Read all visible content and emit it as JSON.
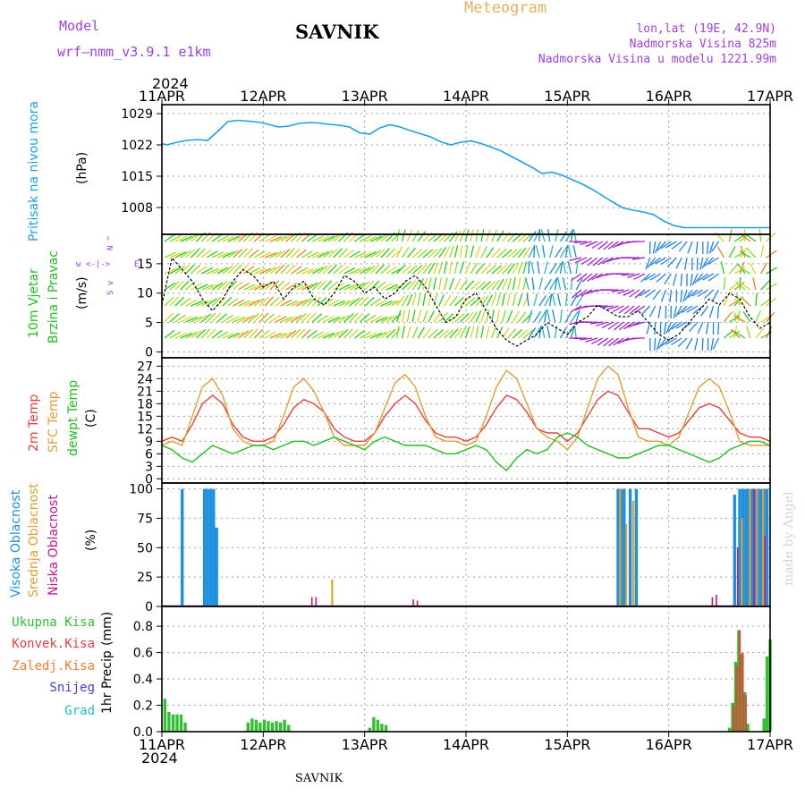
{
  "header": {
    "model_label": "Model",
    "model_name": "wrf—nmm_v3.9.1  e1km",
    "station": "SAVNIK",
    "title": "Meteogram",
    "lonlat": "lon,lat (19E, 42.9N)",
    "elev": "Nadmorska Visina 825m",
    "elev_model": "Nadmorska Visina u modelu 1221.99m",
    "year_top": "2024",
    "year_bottom": "2024",
    "footer_station": "SAVNIK",
    "credit": "made by Angel"
  },
  "colors": {
    "pressure": "#1ea0e6",
    "wind_speed_label": "#20c020",
    "t2m": "#e84040",
    "tsfc": "#e0a030",
    "dewpt": "#20c020",
    "cloud_high": "#1e90e0",
    "cloud_mid": "#e0a030",
    "cloud_low": "#c01890",
    "rain_total": "#30c030",
    "rain_conv": "#e84040",
    "rain_frozen": "#f08030",
    "snow": "#4040e0",
    "hail": "#20c0c0",
    "wind_dir_label": "#a040e0"
  },
  "chart_data": [
    {
      "type": "line",
      "panel": "pressure",
      "ylabel": "Pritisak na nivou mora",
      "unit": "(hPa)",
      "x_labels": [
        "11APR",
        "12APR",
        "13APR",
        "14APR",
        "15APR",
        "16APR",
        "17APR"
      ],
      "y_ticks": [
        1008,
        1015,
        1022,
        1029
      ],
      "ylim": [
        1002,
        1031
      ],
      "series": [
        {
          "x": [
            0,
            0.05,
            0.15,
            0.25,
            0.35,
            0.45,
            0.55,
            0.65,
            0.75,
            0.85,
            0.95,
            1.05,
            1.15,
            1.25,
            1.35,
            1.45,
            1.55,
            1.65,
            1.75,
            1.85,
            1.95,
            2.05,
            2.15,
            2.25,
            2.35,
            2.45,
            2.55,
            2.65,
            2.75,
            2.85,
            2.95,
            3.05,
            3.15,
            3.25,
            3.35,
            3.45,
            3.55,
            3.65,
            3.75,
            3.85,
            3.95,
            4.05,
            4.15,
            4.25,
            4.35,
            4.45,
            4.55,
            4.65,
            4.75,
            4.85,
            4.95,
            5.05,
            5.15,
            5.25,
            5.35,
            5.45,
            5.55,
            5.65,
            5.75,
            5.85,
            5.95,
            6.0
          ],
          "values": [
            1022.3,
            1022.0,
            1022.6,
            1023.0,
            1023.2,
            1023.0,
            1025.0,
            1027.2,
            1027.5,
            1027.3,
            1027.1,
            1026.6,
            1026.0,
            1026.2,
            1026.8,
            1027.0,
            1026.9,
            1026.6,
            1026.4,
            1026.0,
            1024.7,
            1024.4,
            1025.8,
            1026.5,
            1026.0,
            1025.2,
            1024.5,
            1023.8,
            1022.7,
            1022.0,
            1022.6,
            1022.9,
            1022.3,
            1021.5,
            1020.6,
            1019.4,
            1018.2,
            1017.0,
            1015.6,
            1015.9,
            1015.2,
            1014.2,
            1013.2,
            1012.0,
            1010.6,
            1009.2,
            1007.9,
            1007.4,
            1007.0,
            1006.4,
            1005.0,
            1004.0,
            1003.5,
            1003.5,
            1003.5,
            1003.5,
            1003.5,
            1003.5,
            1003.5,
            1003.5,
            1003.5,
            1003.5
          ]
        }
      ]
    },
    {
      "type": "line",
      "panel": "wind",
      "ylabel": "10m Vjetar Brzina i Pravac",
      "unit": "(m/s)",
      "compass": "N ^ W <-|-> E v S",
      "y_ticks": [
        0,
        5,
        10,
        15
      ],
      "ylim": [
        -1,
        20
      ],
      "series": [
        {
          "name": "speed",
          "x": [
            0,
            0.1,
            0.2,
            0.3,
            0.4,
            0.5,
            0.6,
            0.7,
            0.8,
            0.9,
            1.0,
            1.1,
            1.2,
            1.3,
            1.4,
            1.5,
            1.6,
            1.7,
            1.8,
            1.9,
            2.0,
            2.1,
            2.2,
            2.3,
            2.4,
            2.5,
            2.6,
            2.7,
            2.8,
            2.9,
            3.0,
            3.1,
            3.2,
            3.3,
            3.4,
            3.5,
            3.6,
            3.7,
            3.8,
            3.9,
            4.0,
            4.1,
            4.2,
            4.3,
            4.4,
            4.5,
            4.6,
            4.7,
            4.8,
            4.9,
            5.0,
            5.1,
            5.2,
            5.3,
            5.4,
            5.5,
            5.6,
            5.7,
            5.8,
            5.9,
            6.0
          ],
          "values": [
            8,
            16,
            14,
            12,
            9,
            7,
            9,
            12,
            14,
            13,
            11,
            12,
            9,
            11,
            12,
            9,
            8,
            10,
            13,
            12,
            10,
            11,
            9,
            10,
            12,
            13,
            11,
            8,
            5,
            6,
            9,
            10,
            7,
            4,
            2,
            1,
            2,
            3,
            5,
            4,
            3,
            5,
            6,
            8,
            7,
            6,
            6,
            7,
            5,
            3,
            2,
            3,
            5,
            7,
            9,
            8,
            10,
            9,
            6,
            4,
            5
          ]
        }
      ]
    },
    {
      "type": "line",
      "panel": "temperature",
      "ylabel_t2m": "2m Temp",
      "ylabel_sfc": "SFC Temp",
      "ylabel_dew": "dewpt Temp",
      "unit": "(C)",
      "y_ticks": [
        0,
        3,
        6,
        9,
        12,
        15,
        18,
        21,
        24,
        27
      ],
      "ylim": [
        -1,
        29
      ],
      "series": [
        {
          "name": "t2m",
          "x": [
            0,
            0.1,
            0.2,
            0.3,
            0.4,
            0.5,
            0.6,
            0.7,
            0.8,
            0.9,
            1.0,
            1.1,
            1.2,
            1.3,
            1.4,
            1.5,
            1.6,
            1.7,
            1.8,
            1.9,
            2.0,
            2.1,
            2.2,
            2.3,
            2.4,
            2.5,
            2.6,
            2.7,
            2.8,
            2.9,
            3.0,
            3.1,
            3.2,
            3.3,
            3.4,
            3.5,
            3.6,
            3.7,
            3.8,
            3.9,
            4.0,
            4.1,
            4.2,
            4.3,
            4.4,
            4.5,
            4.6,
            4.7,
            4.8,
            4.9,
            5.0,
            5.1,
            5.2,
            5.3,
            5.4,
            5.5,
            5.6,
            5.7,
            5.8,
            5.9,
            6.0
          ],
          "values": [
            9,
            10,
            9,
            13,
            18,
            20,
            18,
            13,
            10,
            9,
            9,
            10,
            13,
            17,
            19,
            18,
            16,
            12,
            10,
            9,
            9,
            11,
            15,
            18,
            20,
            18,
            14,
            11,
            10,
            10,
            9,
            10,
            13,
            17,
            20,
            19,
            16,
            12,
            11,
            11,
            9,
            11,
            15,
            19,
            21,
            20,
            16,
            12,
            12,
            11,
            10,
            11,
            14,
            17,
            18,
            17,
            14,
            11,
            10,
            10,
            9
          ]
        },
        {
          "name": "tsfc",
          "x": [
            0,
            0.1,
            0.2,
            0.3,
            0.4,
            0.5,
            0.6,
            0.7,
            0.8,
            0.9,
            1.0,
            1.1,
            1.2,
            1.3,
            1.4,
            1.5,
            1.6,
            1.7,
            1.8,
            1.9,
            2.0,
            2.1,
            2.2,
            2.3,
            2.4,
            2.5,
            2.6,
            2.7,
            2.8,
            2.9,
            3.0,
            3.1,
            3.2,
            3.3,
            3.4,
            3.5,
            3.6,
            3.7,
            3.8,
            3.9,
            4.0,
            4.1,
            4.2,
            4.3,
            4.4,
            4.5,
            4.6,
            4.7,
            4.8,
            4.9,
            5.0,
            5.1,
            5.2,
            5.3,
            5.4,
            5.5,
            5.6,
            5.7,
            5.8,
            5.9,
            6.0
          ],
          "values": [
            8,
            9,
            8,
            15,
            22,
            24,
            20,
            12,
            9,
            8,
            8,
            9,
            15,
            22,
            24,
            21,
            16,
            10,
            8,
            8,
            8,
            11,
            17,
            23,
            25,
            22,
            15,
            10,
            9,
            9,
            8,
            9,
            15,
            22,
            26,
            24,
            18,
            12,
            10,
            9,
            7,
            10,
            17,
            24,
            27,
            25,
            17,
            10,
            9,
            9,
            8,
            10,
            16,
            22,
            24,
            22,
            16,
            9,
            8,
            8,
            8
          ]
        },
        {
          "name": "dewpt",
          "x": [
            0,
            0.1,
            0.2,
            0.3,
            0.4,
            0.5,
            0.6,
            0.7,
            0.8,
            0.9,
            1.0,
            1.1,
            1.2,
            1.3,
            1.4,
            1.5,
            1.6,
            1.7,
            1.8,
            1.9,
            2.0,
            2.1,
            2.2,
            2.3,
            2.4,
            2.5,
            2.6,
            2.7,
            2.8,
            2.9,
            3.0,
            3.1,
            3.2,
            3.3,
            3.4,
            3.5,
            3.6,
            3.7,
            3.8,
            3.9,
            4.0,
            4.1,
            4.2,
            4.3,
            4.4,
            4.5,
            4.6,
            4.7,
            4.8,
            4.9,
            5.0,
            5.1,
            5.2,
            5.3,
            5.4,
            5.5,
            5.6,
            5.7,
            5.8,
            5.9,
            6.0
          ],
          "values": [
            8,
            7,
            5,
            4,
            6,
            8,
            7,
            6,
            7,
            8,
            8,
            7,
            8,
            9,
            9,
            8,
            9,
            10,
            9,
            8,
            7,
            9,
            10,
            9,
            8,
            8,
            8,
            7,
            6,
            6,
            7,
            8,
            7,
            4,
            2,
            5,
            7,
            6,
            7,
            10,
            11,
            10,
            8,
            7,
            6,
            5,
            5,
            6,
            7,
            8,
            8,
            7,
            6,
            5,
            4,
            5,
            7,
            8,
            9,
            9,
            8
          ]
        }
      ]
    },
    {
      "type": "bar",
      "panel": "clouds",
      "ylabel_high": "Visoka Oblacnost",
      "ylabel_mid": "Srednja Oblacnost",
      "ylabel_low": "Niska Oblacnost",
      "unit": "(%)",
      "y_ticks": [
        0,
        25,
        50,
        75,
        100
      ],
      "ylim": [
        0,
        105
      ],
      "series": [
        {
          "name": "high",
          "x": [
            0.2,
            0.42,
            0.45,
            0.48,
            0.51,
            0.54,
            4.5,
            4.53,
            4.56,
            4.62,
            4.68,
            5.65,
            5.7,
            5.73,
            5.76,
            5.79,
            5.82,
            5.85,
            5.88,
            5.91,
            5.94,
            5.97
          ],
          "values": [
            100,
            100,
            100,
            100,
            100,
            67,
            100,
            100,
            100,
            100,
            100,
            95,
            100,
            100,
            100,
            100,
            100,
            100,
            100,
            100,
            100,
            100
          ]
        },
        {
          "name": "mid",
          "x": [
            1.68,
            4.52,
            4.58,
            4.65,
            5.72,
            5.8,
            5.87,
            5.93
          ],
          "values": [
            23,
            100,
            70,
            90,
            75,
            100,
            100,
            100
          ]
        },
        {
          "name": "low",
          "x": [
            1.48,
            1.52,
            2.48,
            2.52,
            5.43,
            5.47,
            5.68,
            5.84,
            5.95
          ],
          "values": [
            8,
            8,
            6,
            5,
            8,
            10,
            50,
            100,
            60
          ]
        }
      ]
    },
    {
      "type": "bar",
      "panel": "precip",
      "ylabel": "1hr Precip",
      "unit": "(mm)",
      "legend": [
        "Ukupna Kisa",
        "Konvek.Kisa",
        "Zaledj.Kisa",
        "Snijeg",
        "Grad"
      ],
      "y_ticks": [
        0,
        0.2,
        0.4,
        0.6,
        0.8
      ],
      "ylim": [
        0,
        0.95
      ],
      "series": [
        {
          "name": "total",
          "x": [
            0.03,
            0.07,
            0.11,
            0.15,
            0.19,
            0.23,
            0.85,
            0.89,
            0.93,
            0.97,
            1.01,
            1.05,
            1.09,
            1.13,
            1.17,
            1.21,
            1.25,
            2.05,
            2.09,
            2.13,
            2.17,
            2.21,
            5.6,
            5.63,
            5.66,
            5.69,
            5.72,
            5.75,
            5.78,
            5.94,
            5.97,
            6.0
          ],
          "values": [
            0.25,
            0.15,
            0.13,
            0.13,
            0.13,
            0.07,
            0.07,
            0.1,
            0.09,
            0.07,
            0.09,
            0.08,
            0.07,
            0.08,
            0.07,
            0.09,
            0.05,
            0.03,
            0.11,
            0.09,
            0.06,
            0.05,
            0.03,
            0.22,
            0.53,
            0.77,
            0.59,
            0.3,
            0.06,
            0.1,
            0.57,
            0.7
          ]
        },
        {
          "name": "conv",
          "x": [
            5.64,
            5.67,
            5.7,
            5.73,
            5.76
          ],
          "values": [
            0.2,
            0.5,
            0.77,
            0.6,
            0.28
          ]
        }
      ]
    }
  ]
}
